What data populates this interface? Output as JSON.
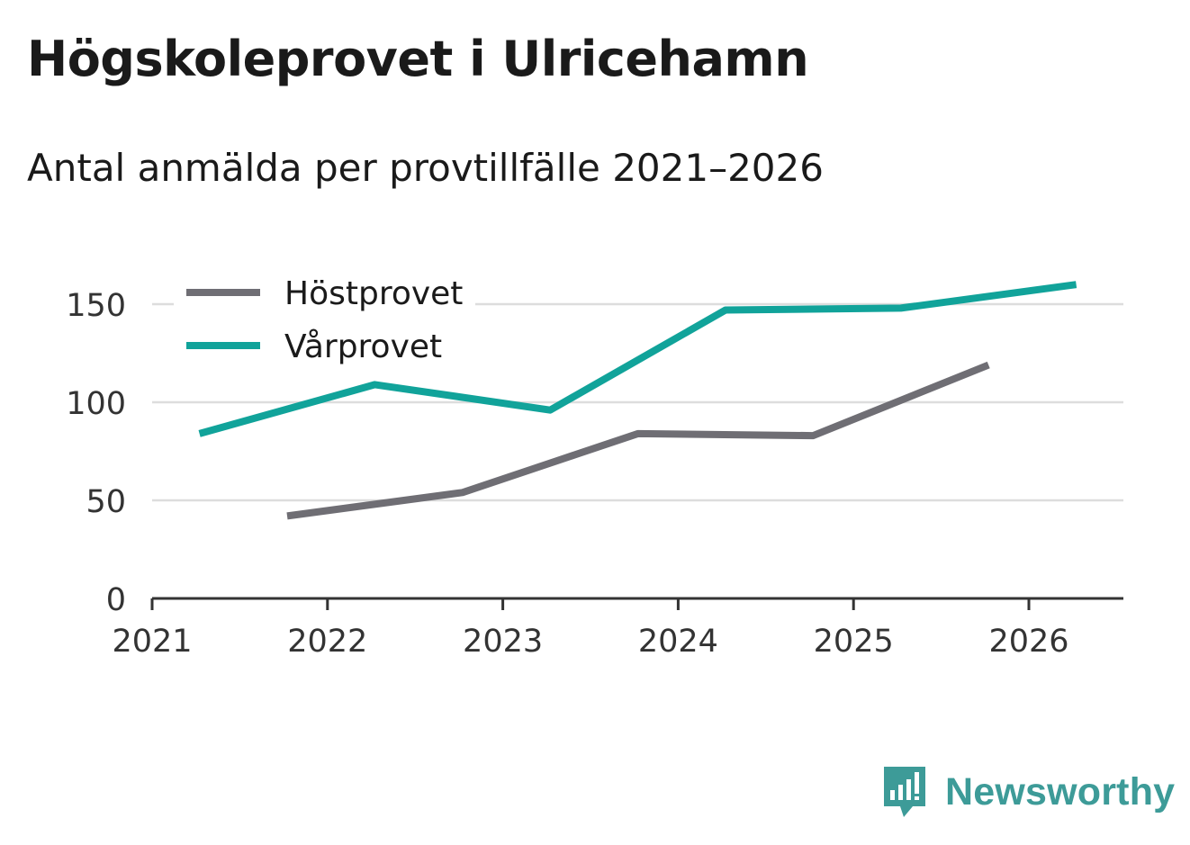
{
  "title": "Högskoleprovet i Ulricehamn",
  "subtitle": "Antal anmälda per provtillfälle 2021–2026",
  "colors": {
    "host": "#6f6e74",
    "var": "#11a39a",
    "grid": "#dddddd",
    "axis": "#333333",
    "brand": "#3d9b98"
  },
  "brand": {
    "name": "Newsworthy",
    "icon": "bar-chart-speech-bubble-icon"
  },
  "chart_data": {
    "type": "line",
    "title": "Högskoleprovet i Ulricehamn",
    "subtitle": "Antal anmälda per provtillfälle 2021–2026",
    "xlabel": "",
    "ylabel": "",
    "xlim": [
      2021,
      2026.55
    ],
    "ylim": [
      0,
      150
    ],
    "yticks": [
      0,
      50,
      100,
      150
    ],
    "xticks": [
      "2021",
      "2022",
      "2023",
      "2024",
      "2025",
      "2026"
    ],
    "grid": true,
    "legend": "top-left",
    "series": [
      {
        "name": "Höstprovet",
        "key": "host",
        "x": [
          2021.77,
          2022.77,
          2023.77,
          2024.77,
          2025.77
        ],
        "values": [
          42,
          54,
          84,
          83,
          119
        ]
      },
      {
        "name": "Vårprovet",
        "key": "var",
        "x": [
          2021.27,
          2022.27,
          2023.27,
          2024.27,
          2025.27,
          2026.27
        ],
        "values": [
          84,
          109,
          96,
          147,
          148,
          160
        ]
      }
    ]
  }
}
